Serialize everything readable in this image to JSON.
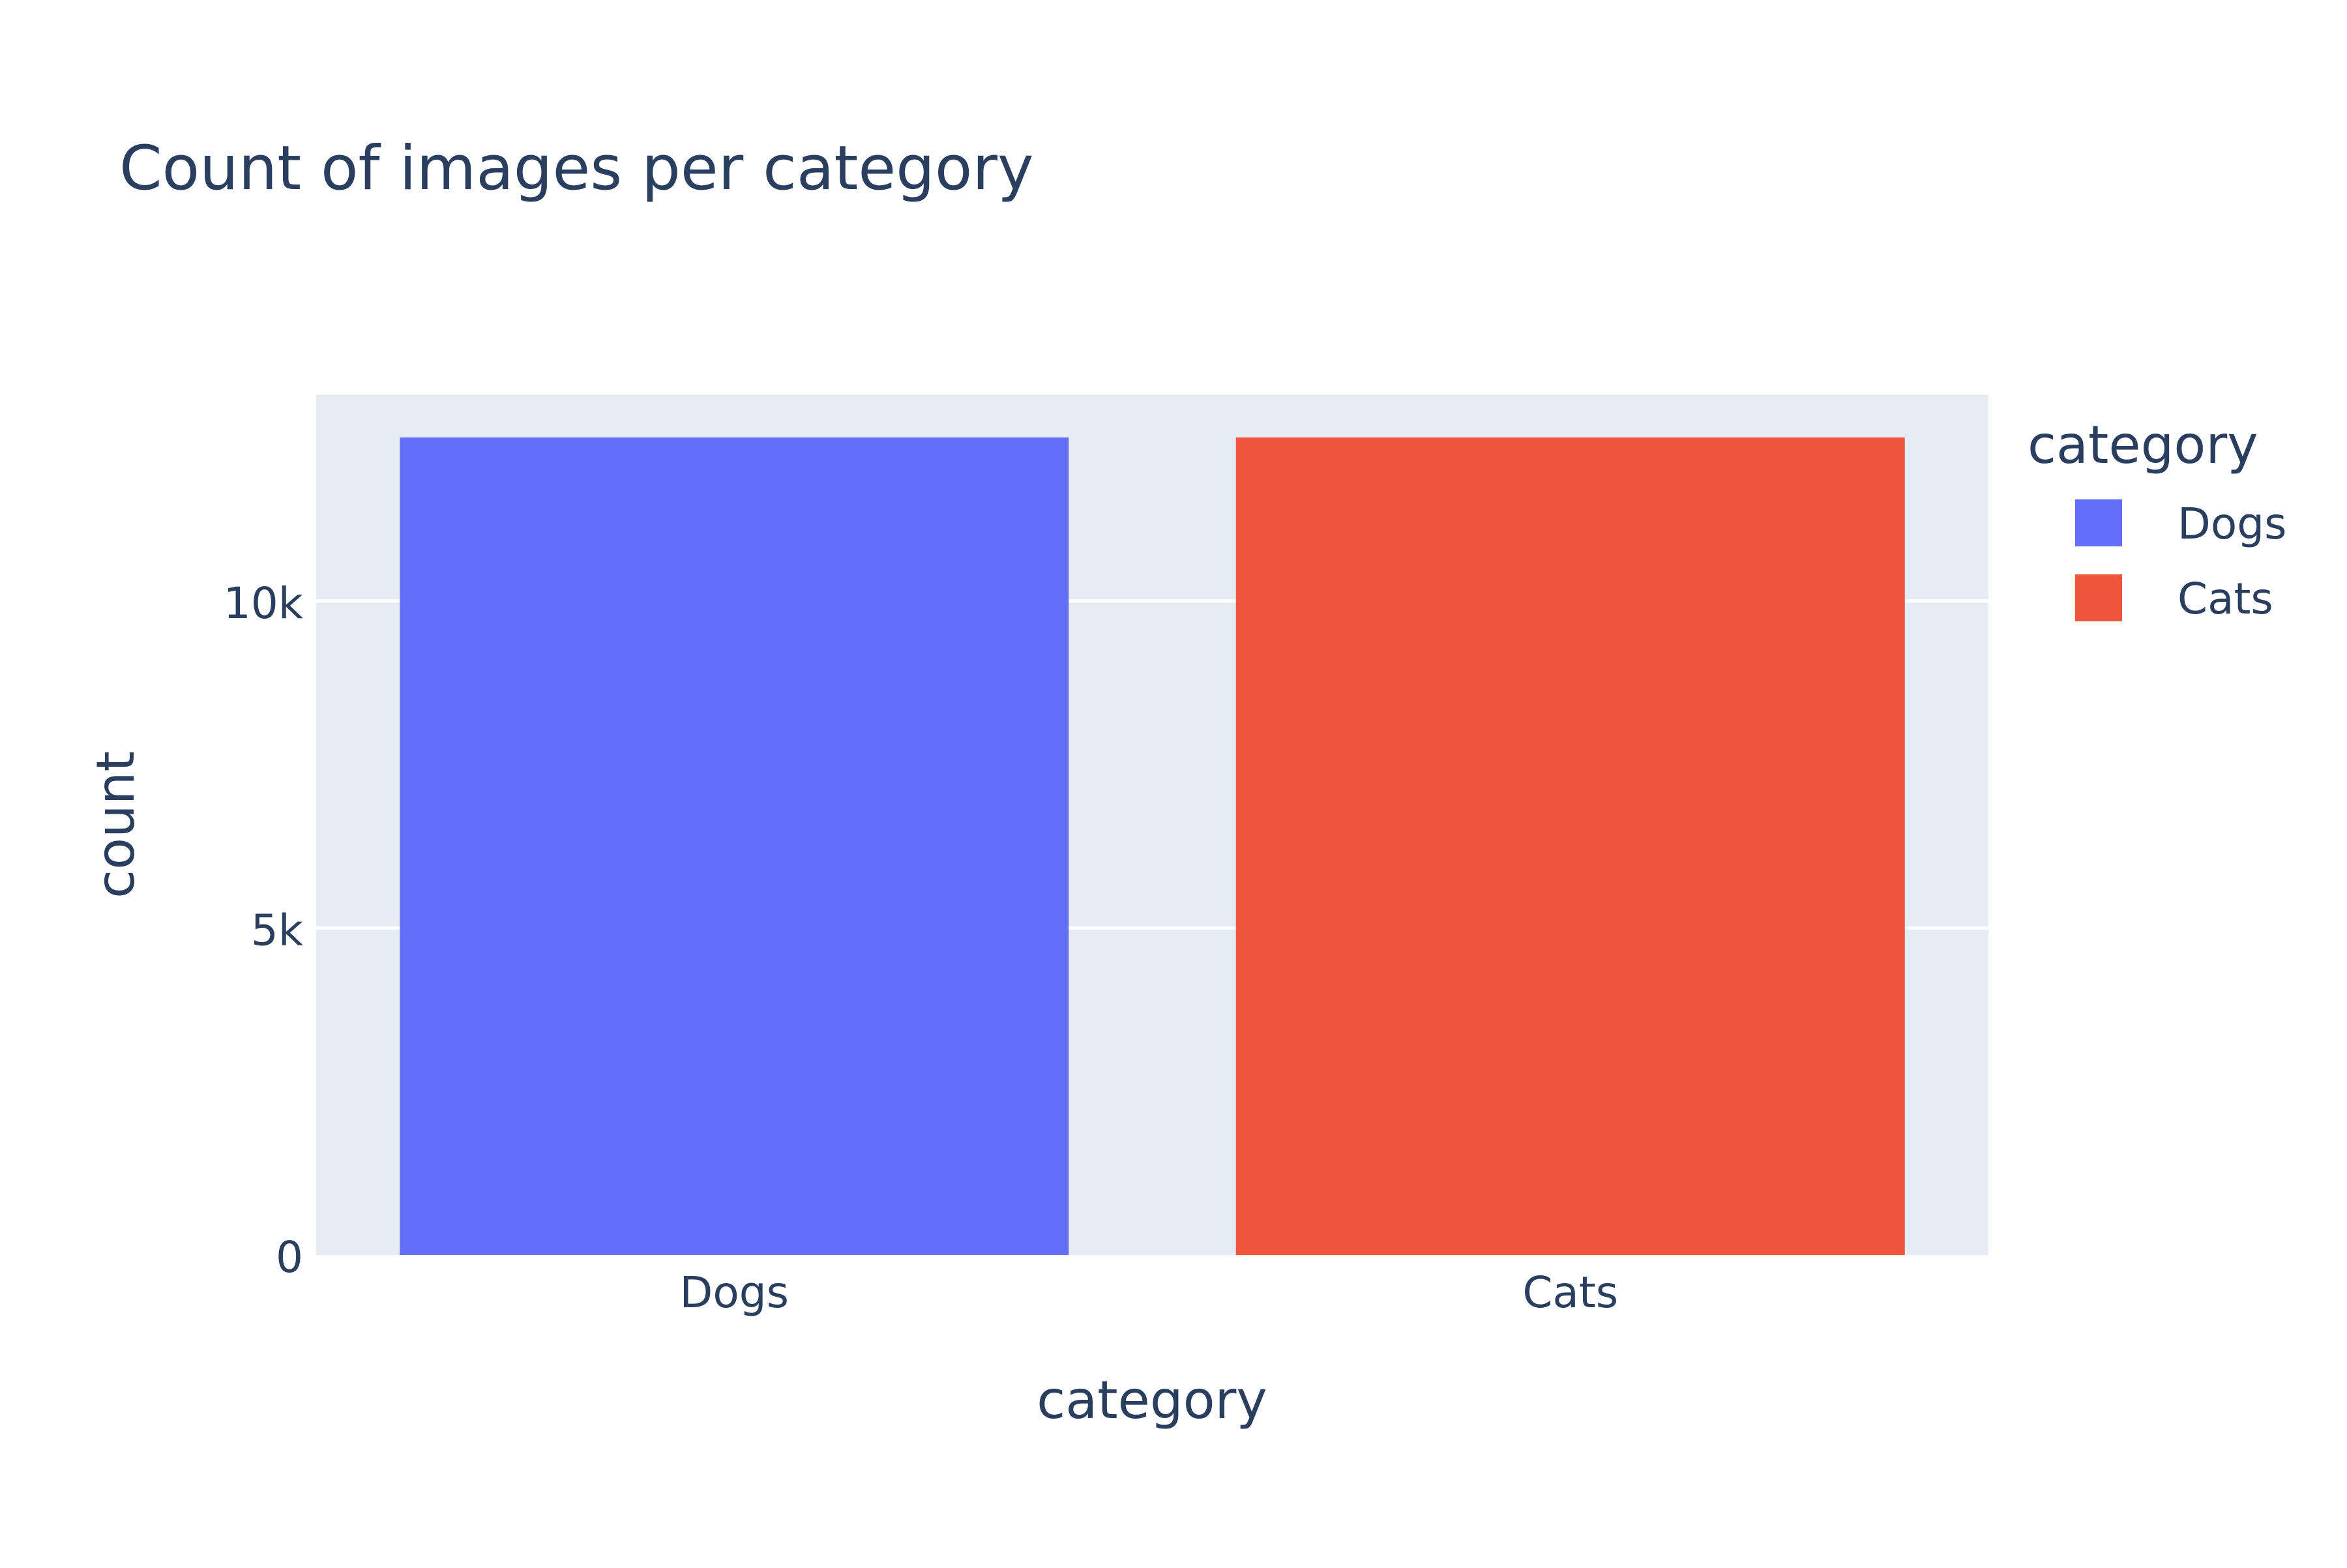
{
  "chart_data": {
    "type": "bar",
    "title": "Count of images per category",
    "xlabel": "category",
    "ylabel": "count",
    "categories": [
      "Dogs",
      "Cats"
    ],
    "series": [
      {
        "name": "Dogs",
        "category": "Dogs",
        "value": 12500,
        "color": "#636efa"
      },
      {
        "name": "Cats",
        "category": "Cats",
        "value": 12500,
        "color": "#ef553b"
      }
    ],
    "ylim": [
      0,
      13158
    ],
    "yticks": [
      {
        "value": 0,
        "label": "0"
      },
      {
        "value": 5000,
        "label": "5k"
      },
      {
        "value": 10000,
        "label": "10k"
      }
    ],
    "grid": true,
    "legend": {
      "title": "category",
      "position": "top-right"
    },
    "colors": {
      "plot_bg": "#e5ecf6",
      "grid": "#ffffff",
      "text": "#2a3f5f"
    }
  }
}
